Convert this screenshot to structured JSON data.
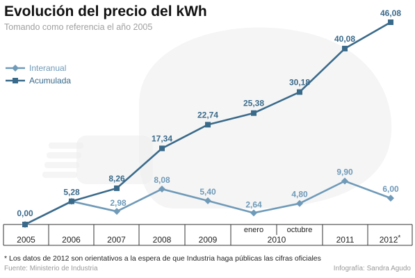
{
  "header": {
    "title": "Evolución del precio del kWh",
    "subtitle": "Tomando como referencia el año 2005"
  },
  "footer": {
    "footnote": "* Los datos de 2012 son orientativos a la espera de que Industria haga públicas las cifras oficiales",
    "source": "Fuente: Ministerio de Industria",
    "credit": "Infografía: Sandra Agudo"
  },
  "colors": {
    "interanual": "#6f9ab8",
    "acumulada": "#3a6a8a",
    "axis": "#333333",
    "background_art": "#ededed"
  },
  "chart_data": {
    "type": "line",
    "title": "Evolución del precio del kWh",
    "subtitle": "Tomando como referencia el año 2005",
    "x": [
      "2005",
      "2006",
      "2007",
      "2008",
      "2009",
      "2010 enero",
      "2010 octubre",
      "2011",
      "2012*"
    ],
    "x_groups": [
      {
        "label": "2005",
        "sub": []
      },
      {
        "label": "2006",
        "sub": []
      },
      {
        "label": "2007",
        "sub": []
      },
      {
        "label": "2008",
        "sub": []
      },
      {
        "label": "2009",
        "sub": []
      },
      {
        "label": "2010",
        "sub": [
          "enero",
          "octubre"
        ]
      },
      {
        "label": "2011",
        "sub": []
      },
      {
        "label": "2012*",
        "sub": []
      }
    ],
    "series": [
      {
        "name": "Interanual",
        "marker": "diamond",
        "values": [
          0.0,
          5.28,
          2.98,
          8.08,
          5.4,
          2.64,
          4.8,
          9.9,
          6.0
        ],
        "labels": [
          "",
          "",
          "2,98",
          "8,08",
          "5,40",
          "2,64",
          "4,80",
          "9,90",
          "6,00"
        ]
      },
      {
        "name": "Acumulada",
        "marker": "square",
        "values": [
          0.0,
          5.28,
          8.26,
          17.34,
          22.74,
          25.38,
          30.18,
          40.08,
          46.08
        ],
        "labels": [
          "0,00",
          "5,28",
          "8,26",
          "17,34",
          "22,74",
          "25,38",
          "30,18",
          "40,08",
          "46,08"
        ]
      }
    ],
    "ylim": [
      0,
      46.08
    ],
    "grid": false,
    "legend": "top-left"
  }
}
